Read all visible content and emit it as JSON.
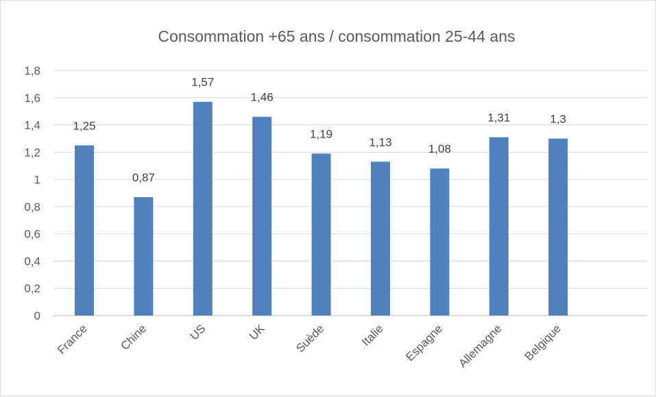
{
  "chart_data": {
    "type": "bar",
    "title": "Consommation +65 ans / consommation 25-44 ans",
    "categories": [
      "France",
      "Chine",
      "US",
      "UK",
      "Suède",
      "Italie",
      "Espagne",
      "Allemagne",
      "Belgique"
    ],
    "values": [
      1.25,
      0.87,
      1.57,
      1.46,
      1.19,
      1.13,
      1.08,
      1.31,
      1.3
    ],
    "data_labels": [
      "1,25",
      "0,87",
      "1,57",
      "1,46",
      "1,19",
      "1,13",
      "1,08",
      "1,31",
      "1,3"
    ],
    "yticks": [
      0,
      0.2,
      0.4,
      0.6,
      0.8,
      1,
      1.2,
      1.4,
      1.6,
      1.8
    ],
    "ytick_labels": [
      "0",
      "0,2",
      "0,4",
      "0,6",
      "0,8",
      "1",
      "1,2",
      "1,4",
      "1,6",
      "1,8"
    ],
    "ylim": [
      0,
      1.8
    ],
    "grid": true,
    "bar_color": "#4f81bd"
  }
}
